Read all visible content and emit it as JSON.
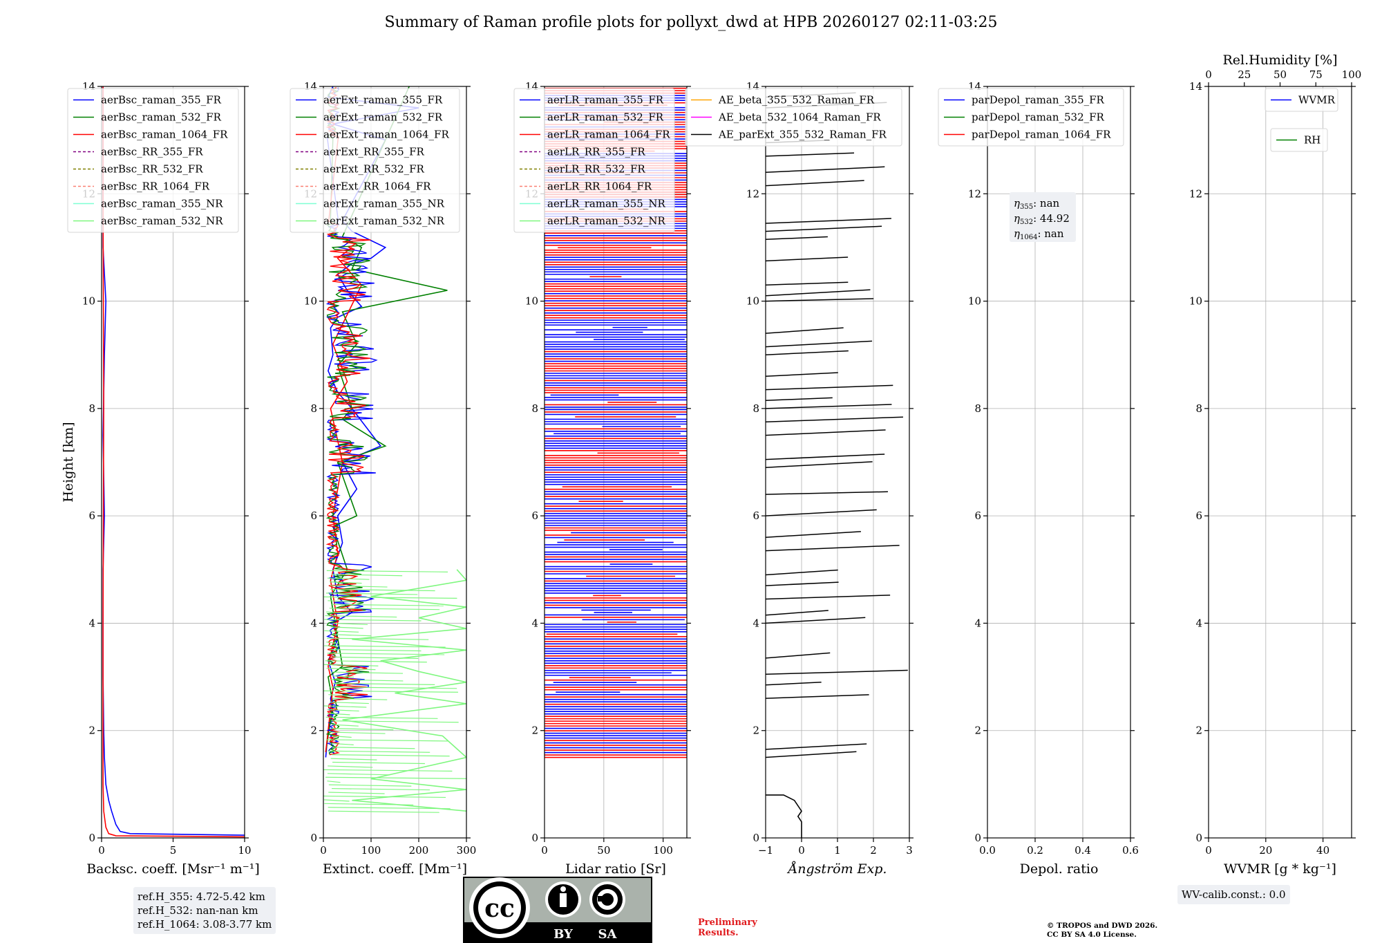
{
  "title": "Summary of Raman profile plots for pollyxt_dwd at HPB 20260127 02:11-03:25",
  "colors": {
    "blue": "#0000ff",
    "green": "#008000",
    "red": "#ff0000",
    "purple": "#800080",
    "olive": "#808000",
    "salmon": "#fa8072",
    "cyan": "#7fffd4",
    "lightgreen": "#7ff77f",
    "orange": "#ffa500",
    "magenta": "#ff00ff",
    "black": "#000000",
    "pink": "#ffb6c1"
  },
  "chart_data": [
    {
      "type": "line",
      "panel": "backscatter",
      "xlabel": "Backsc. coeff. [Msr⁻¹ m⁻¹]",
      "ylabel": "Height [km]",
      "xlim": [
        0,
        10
      ],
      "ylim": [
        0,
        14
      ],
      "xticks": [
        "0",
        "5",
        "10"
      ],
      "yticks": [
        "0",
        "2",
        "4",
        "6",
        "8",
        "10",
        "12",
        "14"
      ],
      "legend": [
        "aerBsc_raman_355_FR",
        "aerBsc_raman_532_FR",
        "aerBsc_raman_1064_FR",
        "aerBsc_RR_355_FR",
        "aerBsc_RR_532_FR",
        "aerBsc_RR_1064_FR",
        "aerBsc_raman_355_NR",
        "aerBsc_raman_532_NR"
      ],
      "legend_colors": [
        "blue",
        "green",
        "red",
        "purple",
        "olive",
        "salmon",
        "cyan",
        "lightgreen"
      ],
      "legend_dashed": [
        false,
        false,
        false,
        true,
        true,
        true,
        false,
        false
      ],
      "series": [
        {
          "name": "aerBsc_raman_355_FR",
          "color": "blue",
          "x": [
            10,
            2,
            1.3,
            1,
            0.7,
            0.5,
            0.3,
            0.2,
            0.15,
            0.1,
            0.1,
            0.2,
            0.1,
            0.2,
            0.3,
            0.1,
            0.1,
            0.1
          ],
          "y": [
            0.05,
            0.08,
            0.12,
            0.25,
            0.5,
            0.7,
            1.0,
            1.5,
            2.0,
            3.0,
            5.0,
            6.0,
            7.5,
            9.0,
            10.0,
            11.0,
            12.0,
            14.0
          ]
        },
        {
          "name": "aerBsc_raman_1064_FR",
          "color": "red",
          "x": [
            10,
            1.0,
            0.5,
            0.3,
            0.15,
            0.1,
            0.1,
            0.15,
            0.1,
            0.1
          ],
          "y": [
            0.02,
            0.04,
            0.08,
            0.2,
            0.5,
            1.0,
            4.0,
            8.0,
            12.0,
            14.0
          ]
        }
      ]
    },
    {
      "type": "line",
      "panel": "extinction",
      "xlabel": "Extinct. coeff. [Mm⁻¹]",
      "xlim": [
        0,
        300
      ],
      "ylim": [
        0,
        14
      ],
      "xticks": [
        "0",
        "100",
        "200",
        "300"
      ],
      "yticks": [
        "0",
        "2",
        "4",
        "6",
        "8",
        "10",
        "12",
        "14"
      ],
      "legend": [
        "aerExt_raman_355_FR",
        "aerExt_raman_532_FR",
        "aerExt_raman_1064_FR",
        "aerExt_RR_355_FR",
        "aerExt_RR_532_FR",
        "aerExt_RR_1064_FR",
        "aerExt_raman_355_NR",
        "aerExt_raman_532_NR"
      ],
      "legend_colors": [
        "blue",
        "green",
        "red",
        "purple",
        "olive",
        "salmon",
        "cyan",
        "lightgreen"
      ],
      "legend_dashed": [
        false,
        false,
        false,
        true,
        true,
        true,
        false,
        false
      ],
      "series": [
        {
          "name": "aerExt_raman_355_FR",
          "color": "blue",
          "x": [
            5,
            10,
            20,
            15,
            25,
            10,
            30,
            20,
            60,
            30,
            20,
            40,
            30,
            70,
            40,
            120,
            60,
            30,
            10,
            20,
            15,
            30,
            80,
            50,
            30,
            60,
            100,
            130,
            60,
            40,
            130,
            20,
            200,
            10,
            20
          ],
          "y": [
            1.5,
            2.0,
            2.3,
            2.6,
            2.9,
            3.3,
            3.7,
            4.0,
            4.2,
            4.5,
            5.0,
            5.5,
            6.0,
            6.5,
            7.0,
            7.3,
            8.0,
            8.3,
            8.7,
            9.0,
            9.5,
            9.7,
            9.9,
            10.2,
            10.5,
            10.7,
            10.8,
            11.0,
            11.3,
            11.5,
            13.0,
            13.3,
            13.6,
            13.8,
            14.0
          ]
        },
        {
          "name": "aerExt_raman_532_FR",
          "color": "green",
          "x": [
            5,
            20,
            10,
            40,
            15,
            50,
            20,
            70,
            30,
            130,
            40,
            60,
            30,
            70,
            40,
            260,
            60,
            80,
            40,
            180
          ],
          "y": [
            1.6,
            2.5,
            3.0,
            3.2,
            4.5,
            5.0,
            5.8,
            6.0,
            7.0,
            7.3,
            7.8,
            8.0,
            8.8,
            9.2,
            9.8,
            10.2,
            10.6,
            11.0,
            11.2,
            14.0
          ]
        },
        {
          "name": "aerExt_raman_1064_FR",
          "color": "red",
          "x": [
            5,
            20,
            10,
            30,
            15,
            30,
            20,
            40,
            15,
            50,
            20,
            80,
            30,
            60
          ],
          "y": [
            1.6,
            2.8,
            3.2,
            4.0,
            4.8,
            5.3,
            6.0,
            7.0,
            8.0,
            8.5,
            9.2,
            10.3,
            10.8,
            11.0
          ]
        },
        {
          "name": "aerExt_raman_532_NR",
          "color": "lightgreen",
          "x": [
            300,
            60,
            300,
            100,
            300,
            250,
            40,
            300,
            150,
            300,
            200,
            120,
            300,
            60,
            300,
            200,
            300,
            100,
            300,
            280
          ],
          "y": [
            0.5,
            0.7,
            0.9,
            1.1,
            1.5,
            1.9,
            2.2,
            2.5,
            2.7,
            2.9,
            3.1,
            3.3,
            3.5,
            3.7,
            3.9,
            4.1,
            4.3,
            4.5,
            4.8,
            5.0
          ]
        }
      ]
    },
    {
      "type": "line",
      "panel": "lidar_ratio",
      "xlabel": "Lidar ratio [Sr]",
      "xlim": [
        0,
        120
      ],
      "ylim": [
        0,
        14
      ],
      "xticks": [
        "0",
        "50",
        "100"
      ],
      "yticks": [
        "0",
        "2",
        "4",
        "6",
        "8",
        "10",
        "12",
        "14"
      ],
      "legend": [
        "aerLR_raman_355_FR",
        "aerLR_raman_532_FR",
        "aerLR_raman_1064_FR",
        "aerLR_RR_355_FR",
        "aerLR_RR_532_FR",
        "aerLR_RR_1064_FR",
        "aerLR_raman_355_NR",
        "aerLR_raman_532_NR"
      ],
      "legend_colors": [
        "blue",
        "green",
        "red",
        "purple",
        "olive",
        "salmon",
        "cyan",
        "lightgreen"
      ],
      "legend_dashed": [
        false,
        false,
        false,
        true,
        true,
        true,
        false,
        false
      ],
      "note": "dense horizontal blue/red lines from 1.5 to 14 km spanning full x-range"
    },
    {
      "type": "line",
      "panel": "angstrom",
      "xlabel": "Ångström Exp.",
      "xlim": [
        -1,
        3
      ],
      "ylim": [
        0,
        14
      ],
      "xticks": [
        "−1",
        "0",
        "1",
        "2",
        "3"
      ],
      "yticks": [
        "0",
        "2",
        "4",
        "6",
        "8",
        "10",
        "12",
        "14"
      ],
      "legend": [
        "AE_beta_355_532_Raman_FR",
        "AE_beta_532_1064_Raman_FR",
        "AE_parExt_355_532_Raman_FR"
      ],
      "legend_colors": [
        "orange",
        "magenta",
        "black"
      ],
      "legend_dashed": [
        false,
        false,
        false
      ],
      "series": [
        {
          "name": "AE_parExt_355_532_Raman_FR",
          "color": "black",
          "x": [
            0,
            0,
            -0.1,
            0,
            -0.2,
            -0.5,
            -1
          ],
          "y": [
            0,
            0.3,
            0.4,
            0.5,
            0.7,
            0.8,
            0.8
          ]
        }
      ]
    },
    {
      "type": "line",
      "panel": "depol",
      "xlabel": "Depol. ratio",
      "xlim": [
        0,
        0.6
      ],
      "ylim": [
        0,
        14
      ],
      "xticks": [
        "0.0",
        "0.2",
        "0.4",
        "0.6"
      ],
      "yticks": [
        "0",
        "2",
        "4",
        "6",
        "8",
        "10",
        "12",
        "14"
      ],
      "legend": [
        "parDepol_raman_355_FR",
        "parDepol_raman_532_FR",
        "parDepol_raman_1064_FR"
      ],
      "legend_colors": [
        "blue",
        "green",
        "red"
      ],
      "legend_dashed": [
        false,
        false,
        false
      ],
      "eta": [
        "η355: nan",
        "η532: 44.92",
        "η1064: nan"
      ]
    },
    {
      "type": "line",
      "panel": "wvmr",
      "xlabel": "WVMR [g * kg⁻¹]",
      "top_xlabel": "Rel.Humidity [%]",
      "xlim": [
        0,
        50
      ],
      "top_xlim": [
        0,
        100
      ],
      "ylim": [
        0,
        14
      ],
      "xticks": [
        "0",
        "20",
        "40"
      ],
      "top_xticks": [
        "0",
        "25",
        "50",
        "75",
        "100"
      ],
      "yticks": [
        "0",
        "2",
        "4",
        "6",
        "8",
        "10",
        "12",
        "14"
      ],
      "legend": [
        "WVMR"
      ],
      "legend2": [
        "RH"
      ],
      "legend_colors": [
        "blue"
      ],
      "legend2_colors": [
        "green"
      ]
    }
  ],
  "refbox": [
    "ref.H_355: 4.72-5.42 km",
    "ref.H_532: nan-nan km",
    "ref.H_1064: 3.08-3.77 km"
  ],
  "wvcalib": "WV-calib.const.: 0.0",
  "cc": {
    "cc": "cc",
    "by": "BY",
    "sa": "SA"
  },
  "prelim": [
    "Preliminary",
    "Results."
  ],
  "copyright": [
    "© TROPOS and DWD 2026.",
    "CC BY SA 4.0 License."
  ]
}
